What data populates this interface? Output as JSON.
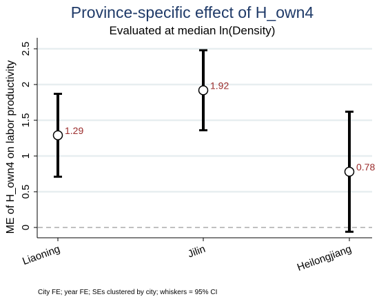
{
  "chart_data": {
    "type": "scatter",
    "title": "Province-specific effect of H_own4",
    "subtitle": "Evaluated at median ln(Density)",
    "ylabel": "ME of H_own4 on labor productivity",
    "xlabel": "",
    "categories": [
      "Liaoning",
      "Jilin",
      "Heilongjiang"
    ],
    "points": [
      {
        "category": "Liaoning",
        "estimate": 1.29,
        "ci_low": 0.71,
        "ci_high": 1.87,
        "label": "1.29"
      },
      {
        "category": "Jilin",
        "estimate": 1.92,
        "ci_low": 1.36,
        "ci_high": 2.48,
        "label": "1.92"
      },
      {
        "category": "Heilongjiang",
        "estimate": 0.78,
        "ci_low": -0.06,
        "ci_high": 1.62,
        "label": "0.78"
      }
    ],
    "ylim": [
      -0.1,
      2.6
    ],
    "yticks": [
      0,
      0.5,
      1,
      1.5,
      2,
      2.5
    ],
    "ytick_labels": [
      "0",
      "0.5",
      "1",
      "1.5",
      "2",
      "2.5"
    ],
    "reference_line": 0,
    "grid": true,
    "legend": "none",
    "note": "City FE; year FE; SEs clustered by city; whiskers = 95% CI",
    "colors": {
      "title": "#1f3a68",
      "grid": "#e7eef0",
      "whisker": "#000000",
      "marker_fill": "#ffffff",
      "data_label": "#9a2a2a",
      "reference_line": "#9a9a9a"
    }
  }
}
